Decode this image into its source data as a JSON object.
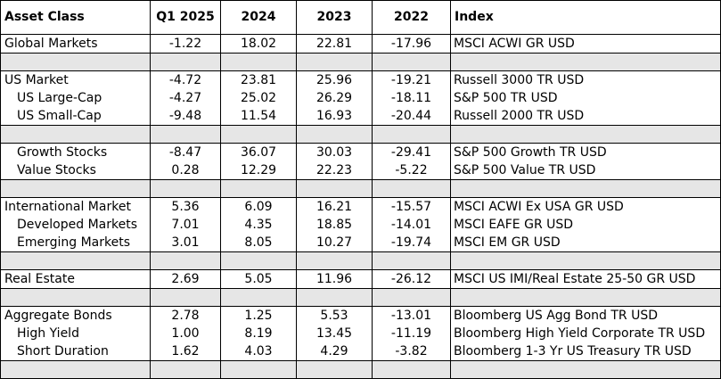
{
  "headers": [
    "Asset Class",
    "Q1 2025",
    "2024",
    "2023",
    "2022",
    "Index"
  ],
  "groups": [
    {
      "rows": [
        {
          "name": "Global Markets",
          "indent": false,
          "values": [
            "-1.22",
            "18.02",
            "22.81",
            "-17.96"
          ],
          "index": "MSCI ACWI GR USD"
        }
      ]
    },
    {
      "rows": [
        {
          "name": "US Market",
          "indent": false,
          "values": [
            "-4.72",
            "23.81",
            "25.96",
            "-19.21"
          ],
          "index": "Russell 3000 TR USD"
        },
        {
          "name": "US Large-Cap",
          "indent": true,
          "values": [
            "-4.27",
            "25.02",
            "26.29",
            "-18.11"
          ],
          "index": "S&P 500 TR USD"
        },
        {
          "name": "US Small-Cap",
          "indent": true,
          "values": [
            "-9.48",
            "11.54",
            "16.93",
            "-20.44"
          ],
          "index": "Russell 2000 TR USD"
        }
      ]
    },
    {
      "rows": [
        {
          "name": "Growth Stocks",
          "indent": true,
          "values": [
            "-8.47",
            "36.07",
            "30.03",
            "-29.41"
          ],
          "index": "S&P 500 Growth TR USD"
        },
        {
          "name": "Value Stocks",
          "indent": true,
          "values": [
            "0.28",
            "12.29",
            "22.23",
            "-5.22"
          ],
          "index": "S&P 500 Value TR USD"
        }
      ]
    },
    {
      "rows": [
        {
          "name": "International Market",
          "indent": false,
          "values": [
            "5.36",
            "6.09",
            "16.21",
            "-15.57"
          ],
          "index": "MSCI ACWI Ex USA GR USD"
        },
        {
          "name": "Developed Markets",
          "indent": true,
          "values": [
            "7.01",
            "4.35",
            "18.85",
            "-14.01"
          ],
          "index": "MSCI EAFE GR USD"
        },
        {
          "name": "Emerging Markets",
          "indent": true,
          "values": [
            "3.01",
            "8.05",
            "10.27",
            "-19.74"
          ],
          "index": "MSCI EM GR USD"
        }
      ]
    },
    {
      "rows": [
        {
          "name": "Real Estate",
          "indent": false,
          "values": [
            "2.69",
            "5.05",
            "11.96",
            "-26.12"
          ],
          "index": "MSCI US IMI/Real Estate 25-50 GR USD"
        }
      ]
    },
    {
      "rows": [
        {
          "name": "Aggregate Bonds",
          "indent": false,
          "values": [
            "2.78",
            "1.25",
            "5.53",
            "-13.01"
          ],
          "index": "Bloomberg US Agg Bond TR USD"
        },
        {
          "name": "High Yield",
          "indent": true,
          "values": [
            "1.00",
            "8.19",
            "13.45",
            "-11.19"
          ],
          "index": "Bloomberg High Yield Corporate TR USD"
        },
        {
          "name": "Short Duration",
          "indent": true,
          "values": [
            "1.62",
            "4.03",
            "4.29",
            "-3.82"
          ],
          "index": "Bloomberg 1-3 Yr US Treasury TR USD"
        }
      ]
    }
  ],
  "colors": {
    "separator_fill": "#e6e6e6",
    "border": "#000000",
    "background": "#ffffff"
  }
}
